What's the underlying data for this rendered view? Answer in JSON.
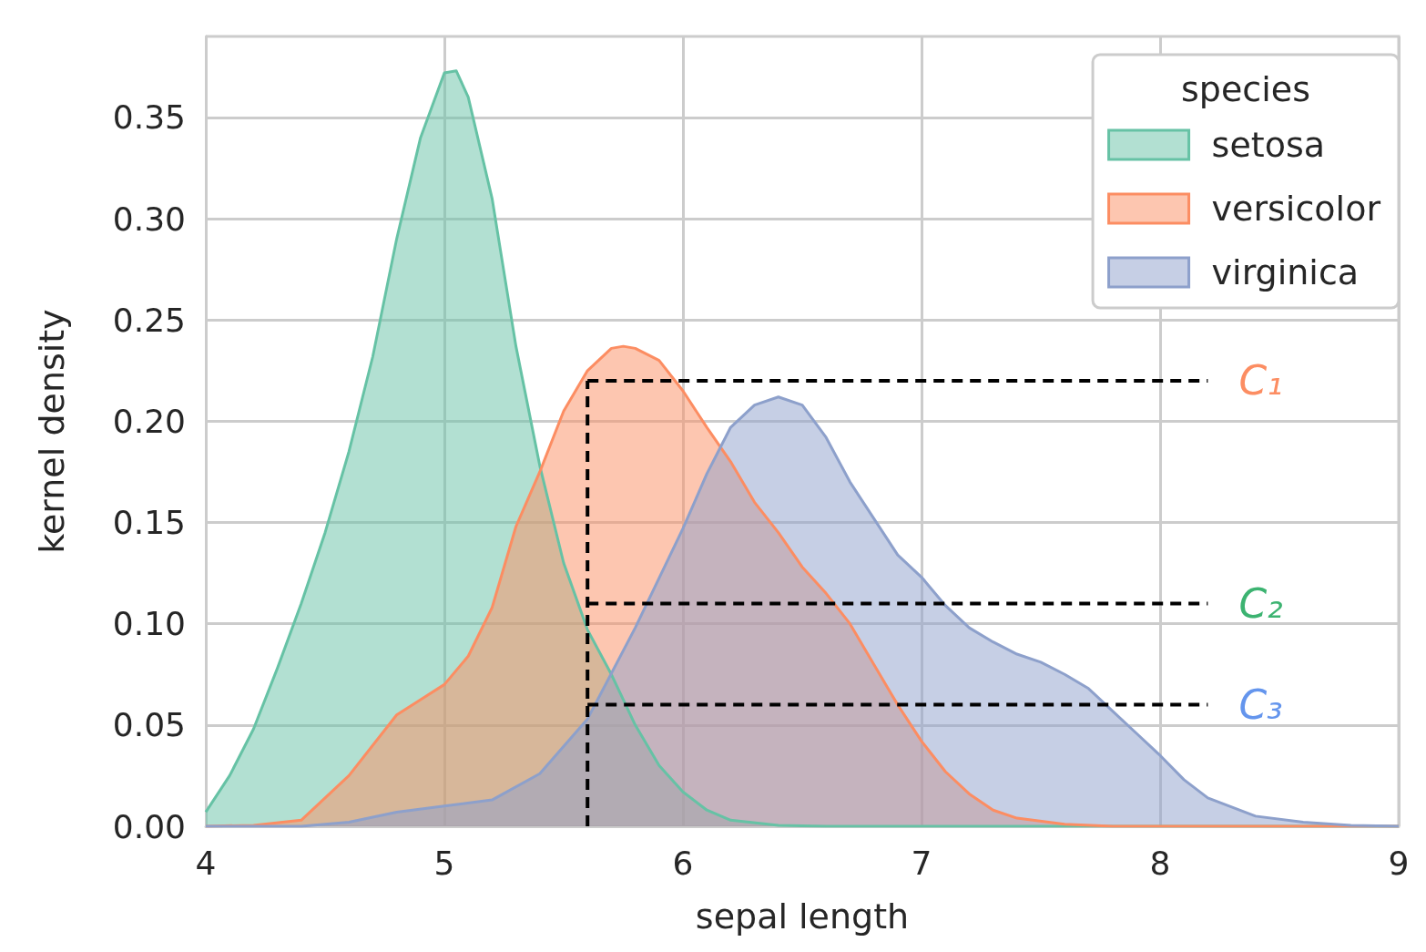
{
  "chart_data": {
    "type": "area",
    "xlabel": "sepal length",
    "ylabel": "kernel density",
    "legend_title": "species",
    "xlim": [
      4,
      9
    ],
    "xticks": [
      4,
      5,
      6,
      7,
      8,
      9
    ],
    "ylim": [
      0,
      0.39
    ],
    "yticks": [
      {
        "value": 0,
        "label": "0.00"
      },
      {
        "value": 0.05,
        "label": "0.05"
      },
      {
        "value": 0.1,
        "label": "0.10"
      },
      {
        "value": 0.15,
        "label": "0.15"
      },
      {
        "value": 0.2,
        "label": "0.20"
      },
      {
        "value": 0.25,
        "label": "0.25"
      },
      {
        "value": 0.3,
        "label": "0.30"
      },
      {
        "value": 0.35,
        "label": "0.35"
      }
    ],
    "grid": true,
    "legend": "top right",
    "series": [
      {
        "name": "setosa",
        "color": "#66c2a5",
        "x": [
          4.0,
          4.1,
          4.2,
          4.3,
          4.4,
          4.5,
          4.6,
          4.7,
          4.8,
          4.9,
          5.0,
          5.05,
          5.1,
          5.2,
          5.3,
          5.4,
          5.5,
          5.6,
          5.7,
          5.8,
          5.9,
          6.0,
          6.1,
          6.2,
          6.4,
          6.6,
          9.0
        ],
        "values": [
          0.007,
          0.025,
          0.048,
          0.078,
          0.11,
          0.145,
          0.185,
          0.232,
          0.29,
          0.34,
          0.372,
          0.373,
          0.36,
          0.31,
          0.237,
          0.178,
          0.13,
          0.097,
          0.075,
          0.05,
          0.03,
          0.017,
          0.008,
          0.003,
          0.0005,
          0,
          0
        ]
      },
      {
        "name": "versicolor",
        "color": "#fc8d62",
        "x": [
          4.0,
          4.2,
          4.4,
          4.6,
          4.8,
          5.0,
          5.1,
          5.2,
          5.3,
          5.4,
          5.5,
          5.6,
          5.7,
          5.75,
          5.8,
          5.9,
          6.0,
          6.1,
          6.2,
          6.3,
          6.4,
          6.5,
          6.6,
          6.7,
          6.8,
          6.9,
          7.0,
          7.1,
          7.2,
          7.3,
          7.4,
          7.6,
          7.8,
          9.0
        ],
        "values": [
          0,
          0.0005,
          0.003,
          0.025,
          0.055,
          0.07,
          0.084,
          0.108,
          0.148,
          0.175,
          0.205,
          0.225,
          0.236,
          0.237,
          0.236,
          0.23,
          0.215,
          0.197,
          0.18,
          0.16,
          0.145,
          0.128,
          0.115,
          0.1,
          0.08,
          0.06,
          0.042,
          0.027,
          0.016,
          0.008,
          0.004,
          0.001,
          0,
          0
        ]
      },
      {
        "name": "virginica",
        "color": "#8da0cb",
        "x": [
          4.0,
          4.4,
          4.6,
          4.8,
          5.0,
          5.2,
          5.4,
          5.6,
          5.8,
          6.0,
          6.1,
          6.2,
          6.3,
          6.4,
          6.5,
          6.6,
          6.7,
          6.8,
          6.9,
          7.0,
          7.1,
          7.2,
          7.3,
          7.4,
          7.5,
          7.6,
          7.7,
          7.8,
          7.9,
          8.0,
          8.1,
          8.2,
          8.4,
          8.6,
          8.8,
          9.0
        ],
        "values": [
          0,
          0,
          0.002,
          0.007,
          0.01,
          0.013,
          0.026,
          0.053,
          0.098,
          0.147,
          0.174,
          0.197,
          0.208,
          0.212,
          0.208,
          0.192,
          0.17,
          0.152,
          0.134,
          0.123,
          0.109,
          0.098,
          0.091,
          0.085,
          0.081,
          0.075,
          0.068,
          0.057,
          0.046,
          0.035,
          0.023,
          0.014,
          0.005,
          0.002,
          0.0005,
          0
        ]
      },
      {
        "type": "line",
        "color": "#000000",
        "line_style": "dashed",
        "x": [
          5.6,
          5.6
        ],
        "values": [
          0,
          0.22
        ]
      },
      {
        "type": "line",
        "color": "#000000",
        "line_style": "dashed",
        "x": [
          5.6,
          8.2
        ],
        "values": [
          0.22,
          0.22
        ]
      },
      {
        "type": "line",
        "color": "#000000",
        "line_style": "dashed",
        "x": [
          5.6,
          8.2
        ],
        "values": [
          0.11,
          0.11
        ]
      },
      {
        "type": "line",
        "color": "#000000",
        "line_style": "dashed",
        "x": [
          5.6,
          8.2
        ],
        "values": [
          0.06,
          0.06
        ]
      }
    ],
    "annotations": [
      "C₁",
      "C₂",
      "C₃"
    ]
  }
}
